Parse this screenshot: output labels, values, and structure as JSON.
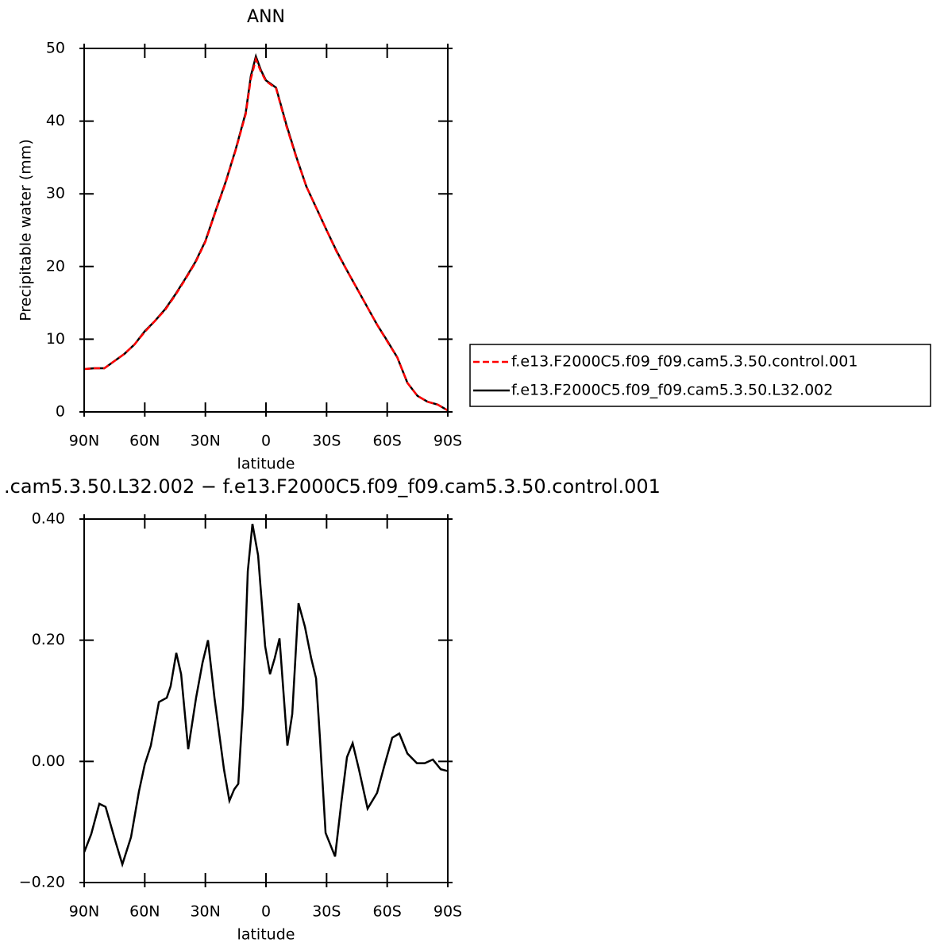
{
  "chart_data": [
    {
      "type": "line",
      "title": "ANN",
      "ylabel": "Precipitable water (mm)",
      "xlabel": "latitude",
      "xlim": [
        90,
        -90
      ],
      "xticks": [
        {
          "value": 90,
          "label": "90N"
        },
        {
          "value": 60,
          "label": "60N"
        },
        {
          "value": 30,
          "label": "30N"
        },
        0,
        {
          "value": -30,
          "label": "30S"
        },
        {
          "value": -60,
          "label": "60S"
        },
        {
          "value": -90,
          "label": "90S"
        }
      ],
      "ylim": [
        0,
        50
      ],
      "yticks": [
        0,
        10,
        20,
        30,
        40,
        50
      ],
      "legend": "outside-right",
      "x": [
        90,
        85,
        80,
        75,
        70,
        65,
        60,
        55,
        50,
        45,
        40,
        35,
        30,
        25,
        20,
        15,
        10,
        7.5,
        5,
        2.5,
        0,
        -5,
        -10,
        -15,
        -20,
        -25,
        -30,
        -35,
        -40,
        -45,
        -50,
        -55,
        -60,
        -65,
        -70,
        -75,
        -80,
        -85,
        -90
      ],
      "series": [
        {
          "name": "f.e13.F2000C5.f09_f09.cam5.3.50.L32.002",
          "color": "#000000",
          "linestyle": "solid",
          "values": [
            5.9,
            6.0,
            6.0,
            7.0,
            8.0,
            9.3,
            11.1,
            12.5,
            14.1,
            16.1,
            18.3,
            20.6,
            23.5,
            27.6,
            31.6,
            36.1,
            41.2,
            46.2,
            48.9,
            47.0,
            45.6,
            44.6,
            39.6,
            35.1,
            31.0,
            28.0,
            25.0,
            22.1,
            19.5,
            17.0,
            14.5,
            12.0,
            9.8,
            7.5,
            4.0,
            2.2,
            1.4,
            1.0,
            0.2
          ]
        },
        {
          "name": "f.e13.F2000C5.f09_f09.cam5.3.50.control.001",
          "color": "#ff0000",
          "linestyle": "dashed",
          "values": [
            5.9,
            6.0,
            6.0,
            7.0,
            8.0,
            9.3,
            11.0,
            12.5,
            14.0,
            16.0,
            18.2,
            20.5,
            23.4,
            27.5,
            31.5,
            36.0,
            41.0,
            45.8,
            48.5,
            46.8,
            45.5,
            44.5,
            39.4,
            35.0,
            31.0,
            28.0,
            25.0,
            22.0,
            19.5,
            17.0,
            14.5,
            12.0,
            9.7,
            7.5,
            4.0,
            2.2,
            1.4,
            1.0,
            0.2
          ]
        }
      ]
    },
    {
      "type": "line",
      "title": ".cam5.3.50.L32.002 − f.e13.F2000C5.f09_f09.cam5.3.50.control.001",
      "xlabel": "latitude",
      "xlim": [
        90,
        -90
      ],
      "xticks": [
        {
          "value": 90,
          "label": "90N"
        },
        {
          "value": 60,
          "label": "60N"
        },
        {
          "value": 30,
          "label": "30N"
        },
        0,
        {
          "value": -30,
          "label": "30S"
        },
        {
          "value": -60,
          "label": "60S"
        },
        {
          "value": -90,
          "label": "90S"
        }
      ],
      "ylim": [
        -0.2,
        0.4
      ],
      "yticks": [
        {
          "value": -0.2,
          "label": "−0.20"
        },
        {
          "value": 0,
          "label": "0.00"
        },
        {
          "value": 0.2,
          "label": "0.20"
        },
        {
          "value": 0.4,
          "label": "0.40"
        }
      ],
      "x": [
        90,
        86.5,
        82.5,
        79.4,
        74.7,
        71.1,
        66.8,
        62.9,
        60,
        57,
        53,
        49.1,
        47.2,
        44.4,
        42,
        38.5,
        34.6,
        31.4,
        28.7,
        25.5,
        20.8,
        18.1,
        15.7,
        13.7,
        11.4,
        9,
        6.7,
        3.9,
        0.4,
        -2,
        -4.3,
        -6.7,
        -10.6,
        -13,
        -16.1,
        -19.3,
        -22.4,
        -24.8,
        -26.7,
        -29.5,
        -34.2,
        -37.4,
        -40.1,
        -42.9,
        -46,
        -50.3,
        -55,
        -58.6,
        -62.5,
        -66,
        -70,
        -74.7,
        -78.6,
        -82.6,
        -86.5,
        -90
      ],
      "series": [
        {
          "color": "#000000",
          "linestyle": "solid",
          "values": [
            -0.15,
            -0.12,
            -0.07,
            -0.075,
            -0.13,
            -0.17,
            -0.125,
            -0.05,
            -0.005,
            0.026,
            0.098,
            0.105,
            0.124,
            0.179,
            0.144,
            0.02,
            0.105,
            0.163,
            0.2,
            0.105,
            -0.013,
            -0.065,
            -0.046,
            -0.037,
            0.092,
            0.314,
            0.392,
            0.34,
            0.19,
            0.144,
            0.17,
            0.203,
            0.026,
            0.078,
            0.261,
            0.222,
            0.17,
            0.137,
            0.039,
            -0.118,
            -0.157,
            -0.065,
            0.007,
            0.03,
            -0.013,
            -0.078,
            -0.052,
            -0.007,
            0.039,
            0.046,
            0.013,
            -0.003,
            -0.003,
            0.003,
            -0.013,
            -0.016
          ]
        }
      ]
    }
  ]
}
